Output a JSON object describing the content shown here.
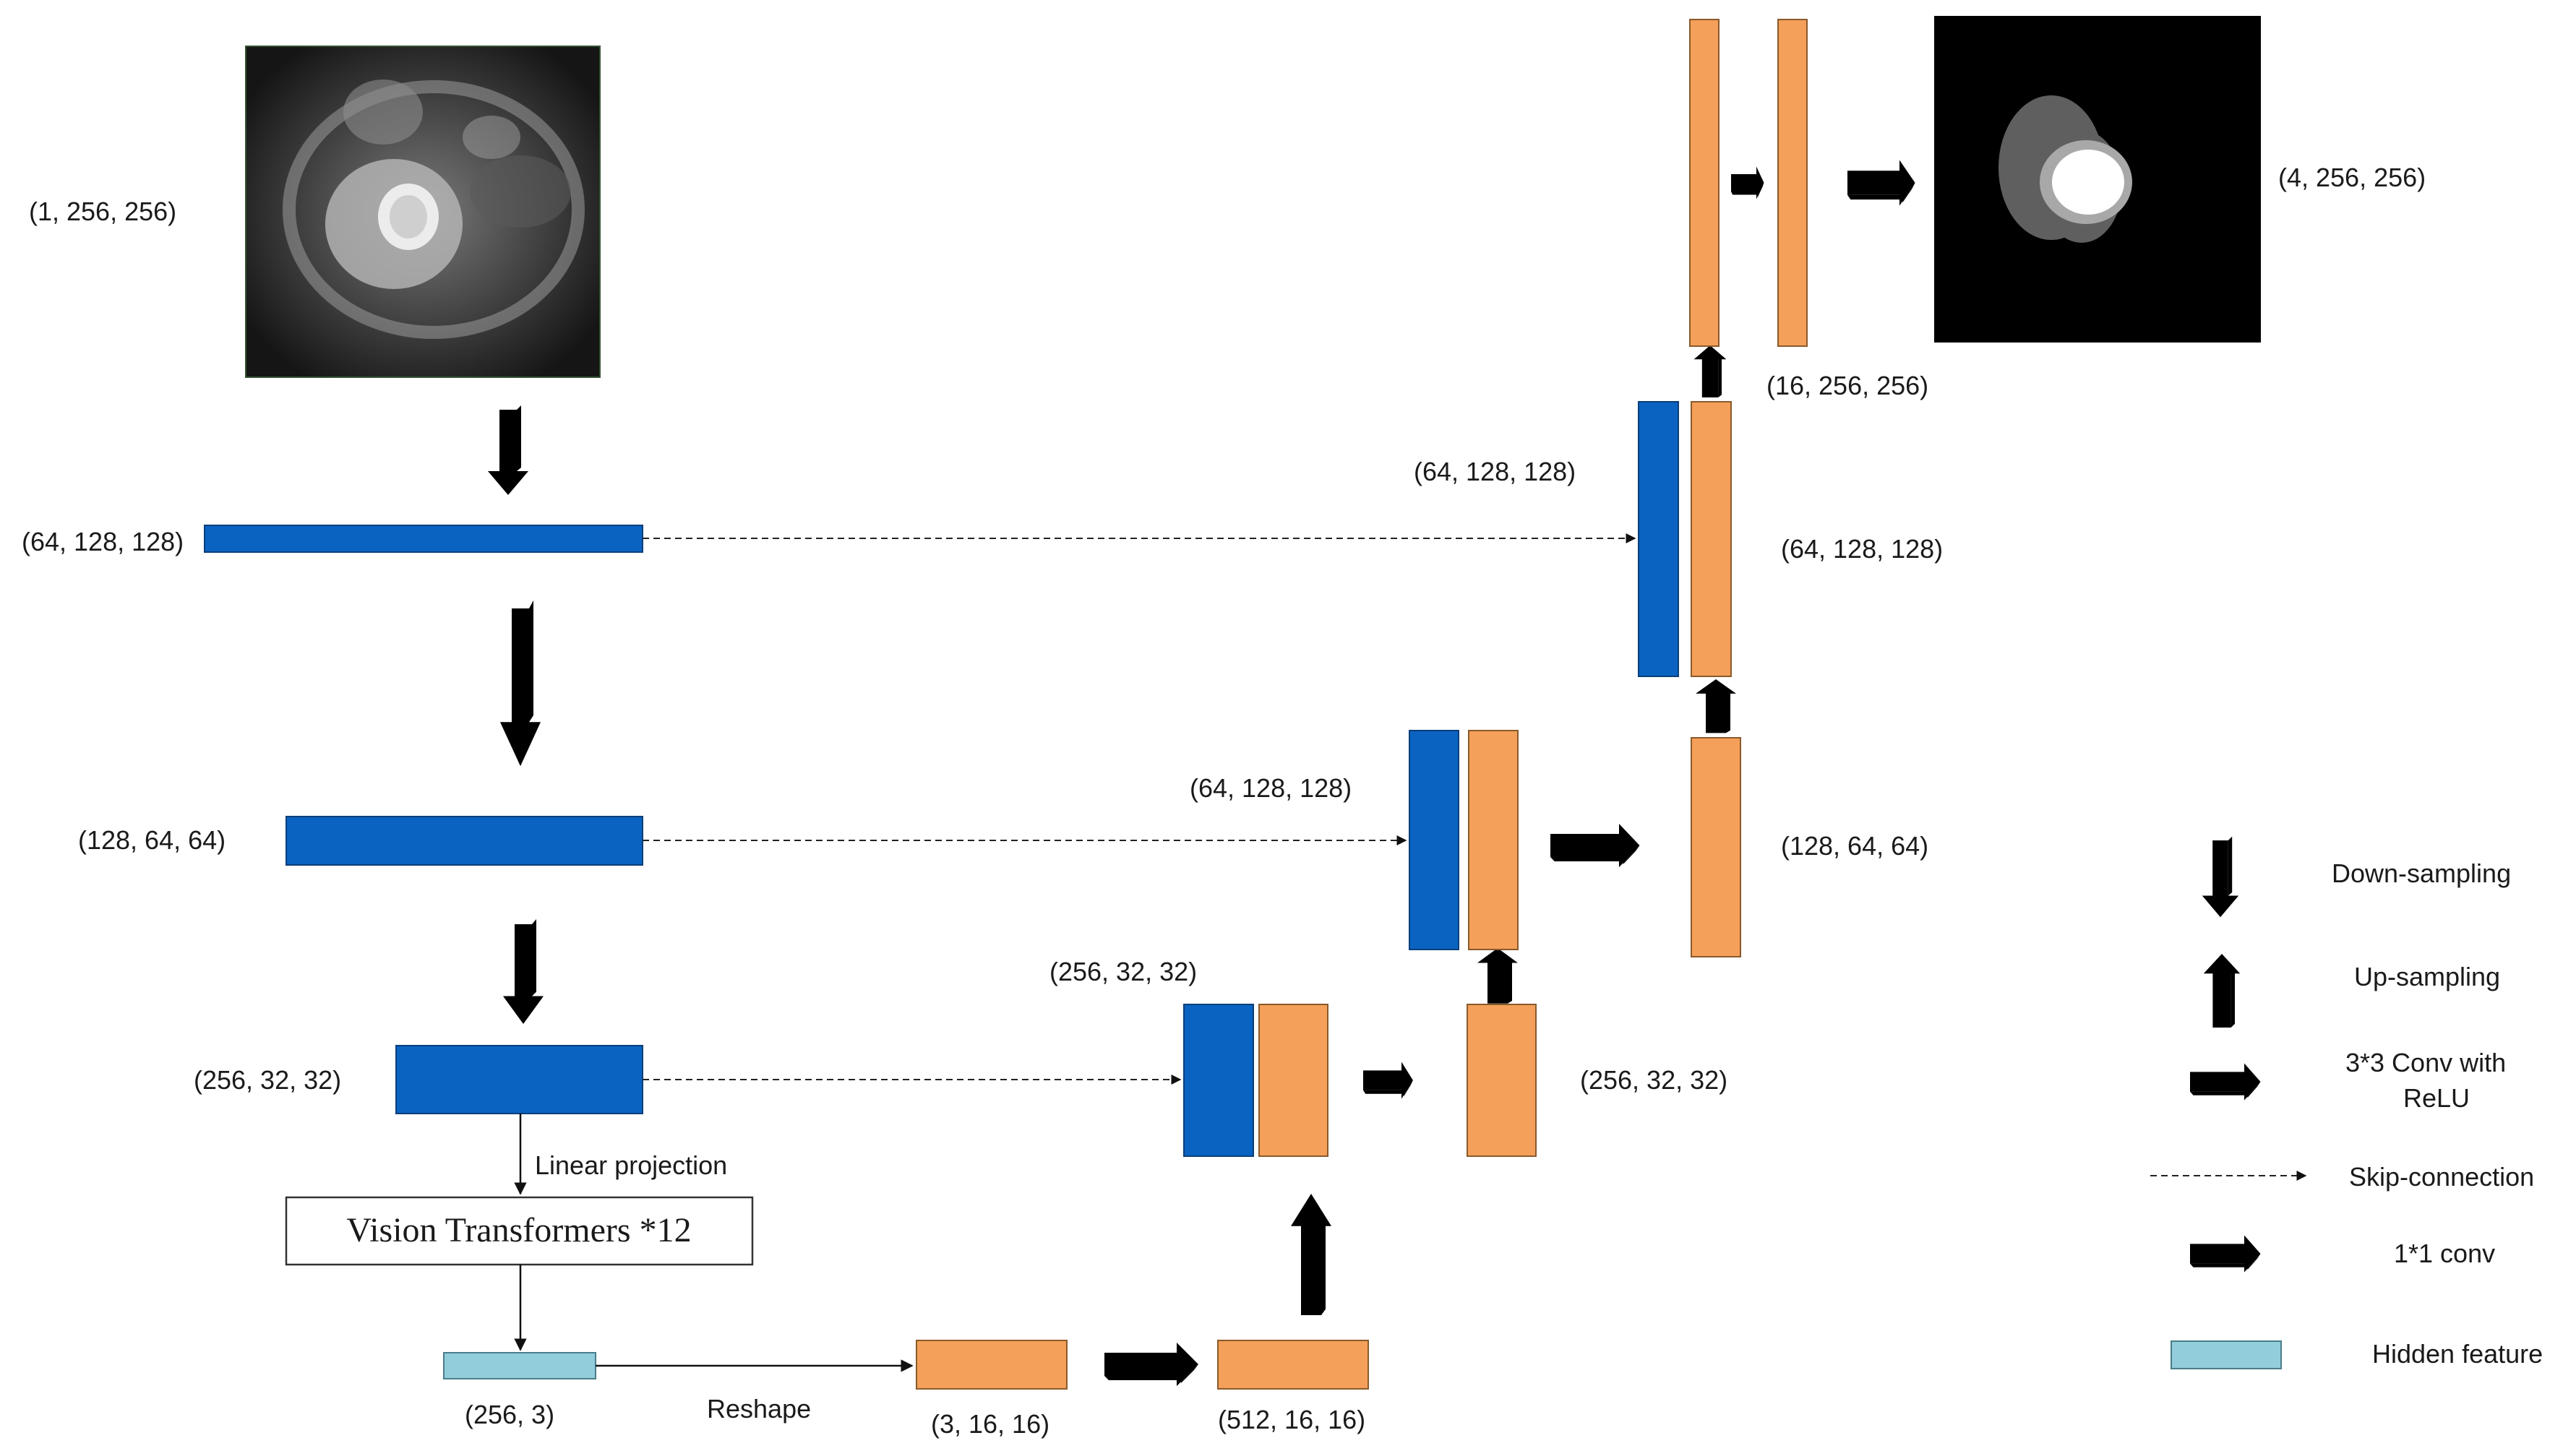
{
  "shapes": {
    "input_input": "(1, 256, 256)",
    "enc1": "(64, 128, 128)",
    "enc2": "(128, 64, 64)",
    "enc3": "(256, 32, 32)",
    "linear_projection": "Linear projection",
    "vit_block": "Vision Transformers *12",
    "hidden": "(256, 3)",
    "reshape": "Reshape",
    "reshaped": "(3, 16, 16)",
    "conv_512": "(512, 16, 16)",
    "concat_256": "(256, 32, 32)",
    "dec_256": "(256, 32, 32)",
    "concat_128": "(64, 128, 128)",
    "dec_128": "(128, 64, 64)",
    "concat_64": "(64, 128, 128)",
    "dec_64": "(64, 128, 128)",
    "dec_16": "(16, 256, 256)",
    "output": "(4, 256, 256)"
  },
  "legend": {
    "down": "Down-sampling",
    "up": "Up-sampling",
    "conv_line1": "3*3 Conv with",
    "conv_line2": "ReLU",
    "skip": "Skip-connection",
    "one": "1*1 conv",
    "hidden": "Hidden feature"
  },
  "colors": {
    "encoder_blue": "#0a63c1",
    "decoder_orange": "#f4a05a",
    "hidden_teal": "#92cddc",
    "upsample_red": "#c00000",
    "conv_cyan": "#4aacc6",
    "one_by_one_purple": "#a99bc9",
    "downsample_beige": "#e9e9d8"
  }
}
